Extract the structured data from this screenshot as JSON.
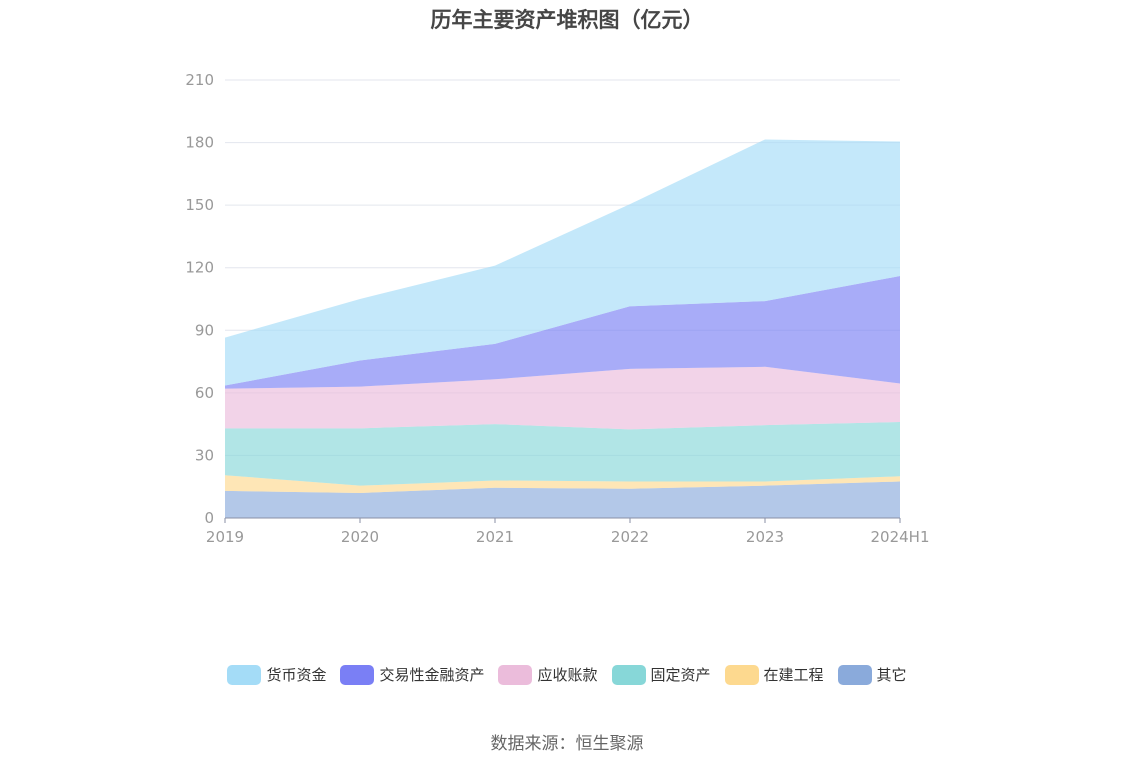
{
  "chart_data": {
    "type": "area",
    "stacked": true,
    "title": "历年主要资产堆积图（亿元）",
    "categories": [
      "2019",
      "2020",
      "2021",
      "2022",
      "2023",
      "2024H1"
    ],
    "y_ticks": [
      "0",
      "30",
      "60",
      "90",
      "120",
      "150",
      "180",
      "210"
    ],
    "ylim": [
      0,
      210
    ],
    "grid": true,
    "legend_position": "bottom",
    "series": [
      {
        "name": "其它",
        "color": "#8aaadb",
        "values": [
          13,
          12,
          14.5,
          14,
          15.5,
          17.5
        ]
      },
      {
        "name": "在建工程",
        "color": "#fdd98f",
        "values": [
          7.5,
          3.5,
          3.5,
          3.5,
          2,
          2.5
        ]
      },
      {
        "name": "固定资产",
        "color": "#87d7d8",
        "values": [
          22.5,
          27.5,
          27,
          25,
          27,
          26
        ]
      },
      {
        "name": "应收账款",
        "color": "#ebbcdb",
        "values": [
          19,
          20,
          21.5,
          29,
          28,
          18.5
        ]
      },
      {
        "name": "交易性金融资产",
        "color": "#7a7ff5",
        "values": [
          1.5,
          12.5,
          17,
          30,
          31.5,
          51.5
        ]
      },
      {
        "name": "货币资金",
        "color": "#a4dcf7",
        "values": [
          23,
          29.5,
          37.5,
          49,
          77.5,
          64.5
        ]
      }
    ],
    "legend_order": [
      "货币资金",
      "交易性金融资产",
      "应收账款",
      "固定资产",
      "在建工程",
      "其它"
    ]
  },
  "footer": {
    "source": "数据来源：恒生聚源"
  }
}
